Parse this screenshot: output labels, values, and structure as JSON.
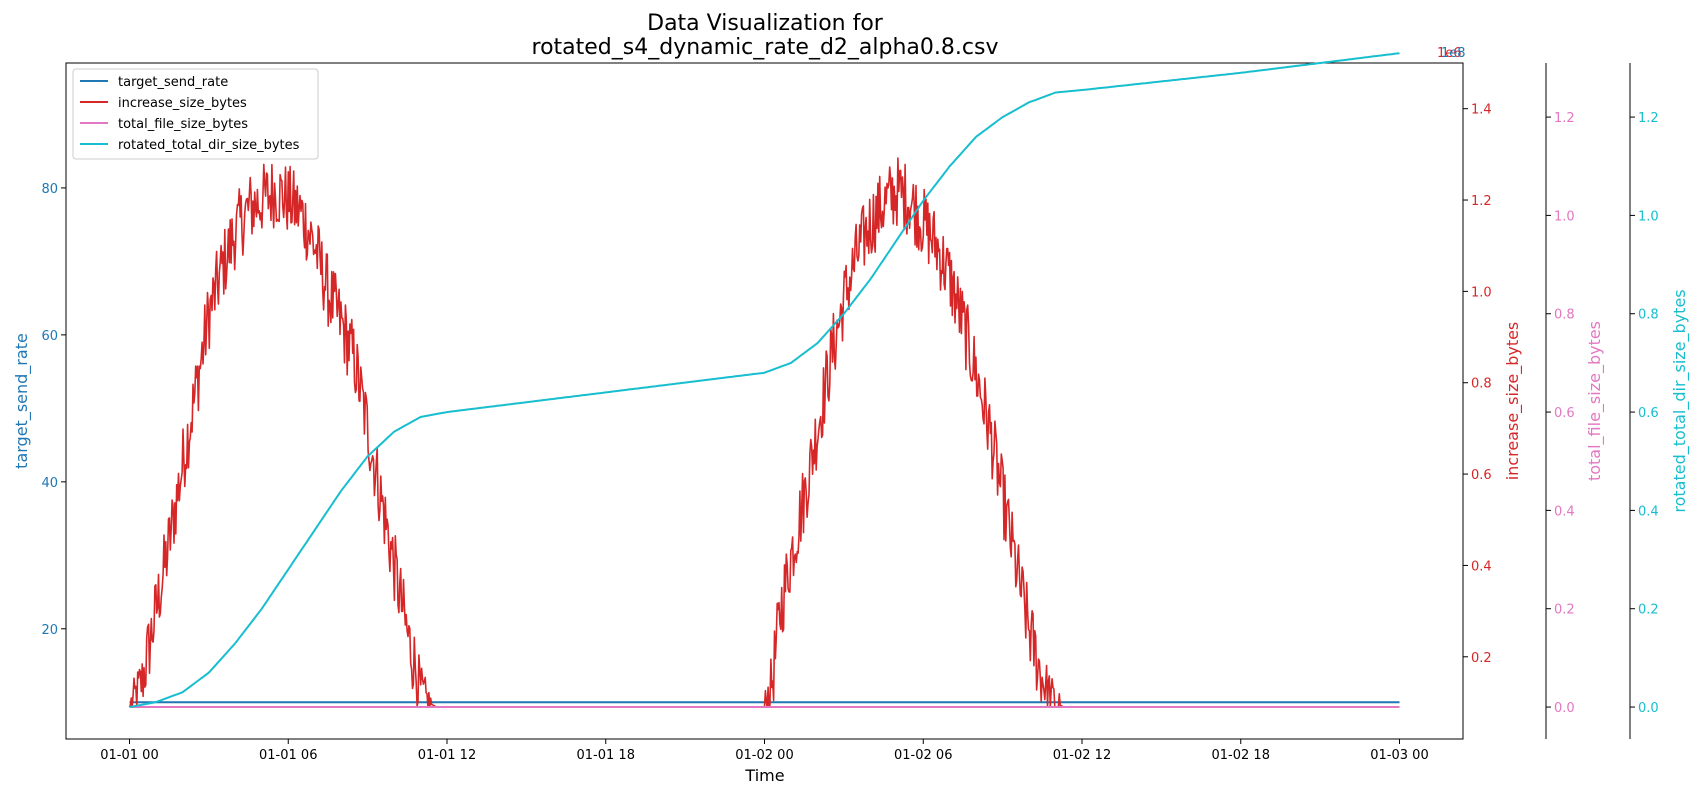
{
  "chart_data": {
    "type": "line",
    "title_line1": "Data Visualization for",
    "title_line2": "rotated_s4_dynamic_rate_d2_alpha0.8.csv",
    "xlabel": "Time",
    "x_ticks": [
      "01-01 00",
      "01-01 06",
      "01-01 12",
      "01-01 18",
      "01-02 00",
      "01-02 06",
      "01-02 12",
      "01-02 18",
      "01-03 00"
    ],
    "x_range_hours": [
      -2.4,
      50.4
    ],
    "colors": {
      "target_send_rate": "#1f77b4",
      "increase_size_bytes": "#d62728",
      "total_file_size_bytes": "#e377c2",
      "rotated_total_dir_size_bytes": "#17becf"
    },
    "axes": {
      "left": {
        "label": "target_send_rate",
        "ylim": [
          5,
          97
        ],
        "ticks": [
          20,
          40,
          60,
          80
        ],
        "tick_labels": [
          "20",
          "40",
          "60",
          "80"
        ]
      },
      "right1": {
        "label": "increase_size_bytes",
        "offset_text": "1e6",
        "ylim": [
          0.02,
          1.5
        ],
        "ticks": [
          0.2,
          0.4,
          0.6,
          0.8,
          1.0,
          1.2,
          1.4
        ],
        "tick_labels": [
          "0.2",
          "0.4",
          "0.6",
          "0.8",
          "1.0",
          "1.2",
          "1.4"
        ]
      },
      "right2": {
        "label": "total_file_size_bytes",
        "ylim": [
          -0.065,
          1.31
        ],
        "ticks": [
          0.0,
          0.2,
          0.4,
          0.6,
          0.8,
          1.0,
          1.2
        ],
        "tick_labels": [
          "0.0",
          "0.2",
          "0.4",
          "0.6",
          "0.8",
          "1.0",
          "1.2"
        ]
      },
      "right3": {
        "label": "rotated_total_dir_size_bytes",
        "offset_text": "1e8",
        "ylim": [
          -0.065,
          1.31
        ],
        "ticks": [
          0.0,
          0.2,
          0.4,
          0.6,
          0.8,
          1.0,
          1.2
        ],
        "tick_labels": [
          "0.0",
          "0.2",
          "0.4",
          "0.6",
          "0.8",
          "1.0",
          "1.2"
        ]
      }
    },
    "legend": {
      "placement": "upper-left",
      "entries": [
        "target_send_rate",
        "increase_size_bytes",
        "total_file_size_bytes",
        "rotated_total_dir_size_bytes"
      ]
    },
    "series": [
      {
        "name": "target_send_rate",
        "axis": "left",
        "x_hours": [
          0,
          48
        ],
        "y": [
          10,
          10
        ]
      },
      {
        "name": "increase_size_bytes",
        "axis": "right1",
        "unit_scale": "1e6",
        "x_hours": [
          0.0,
          0.5,
          1.0,
          1.5,
          2.0,
          2.5,
          3.0,
          3.5,
          4.0,
          4.5,
          5.0,
          5.5,
          6.0,
          6.5,
          7.0,
          7.5,
          8.0,
          8.5,
          9.0,
          9.5,
          10.0,
          10.5,
          11.0,
          11.3,
          11.6,
          12.0,
          24.0,
          24.3,
          24.6,
          25.0,
          25.5,
          26.0,
          26.5,
          27.0,
          27.5,
          28.0,
          28.5,
          29.0,
          29.5,
          30.0,
          30.5,
          31.0,
          31.5,
          32.0,
          32.5,
          33.0,
          33.5,
          34.0,
          34.5,
          35.0,
          35.3,
          35.6,
          36.0,
          48.0
        ],
        "y": [
          0.09,
          0.15,
          0.3,
          0.45,
          0.62,
          0.78,
          0.95,
          1.05,
          1.13,
          1.18,
          1.2,
          1.22,
          1.2,
          1.17,
          1.1,
          1.0,
          0.93,
          0.85,
          0.7,
          0.55,
          0.4,
          0.25,
          0.13,
          0.1,
          0.09,
          0.09,
          0.09,
          0.15,
          0.3,
          0.42,
          0.55,
          0.7,
          0.85,
          0.98,
          1.08,
          1.15,
          1.19,
          1.22,
          1.2,
          1.15,
          1.1,
          1.03,
          0.93,
          0.82,
          0.7,
          0.55,
          0.4,
          0.26,
          0.15,
          0.1,
          0.09,
          0.09,
          0.09,
          0.09
        ],
        "noise_amplitude": 0.08
      },
      {
        "name": "total_file_size_bytes",
        "axis": "right2",
        "x_hours": [
          0,
          48
        ],
        "y": [
          0,
          0
        ]
      },
      {
        "name": "rotated_total_dir_size_bytes",
        "axis": "right3",
        "unit_scale": "1e8",
        "x_hours": [
          0,
          1,
          2,
          3,
          4,
          5,
          6,
          7,
          8,
          9,
          10,
          11,
          12,
          18,
          24,
          25,
          26,
          27,
          28,
          29,
          30,
          31,
          32,
          33,
          34,
          35,
          36,
          42,
          48
        ],
        "y": [
          0.0,
          0.01,
          0.03,
          0.07,
          0.13,
          0.2,
          0.28,
          0.36,
          0.44,
          0.51,
          0.56,
          0.59,
          0.6,
          0.64,
          0.68,
          0.7,
          0.74,
          0.8,
          0.87,
          0.95,
          1.03,
          1.1,
          1.16,
          1.2,
          1.23,
          1.25,
          1.255,
          1.29,
          1.33
        ]
      }
    ]
  }
}
